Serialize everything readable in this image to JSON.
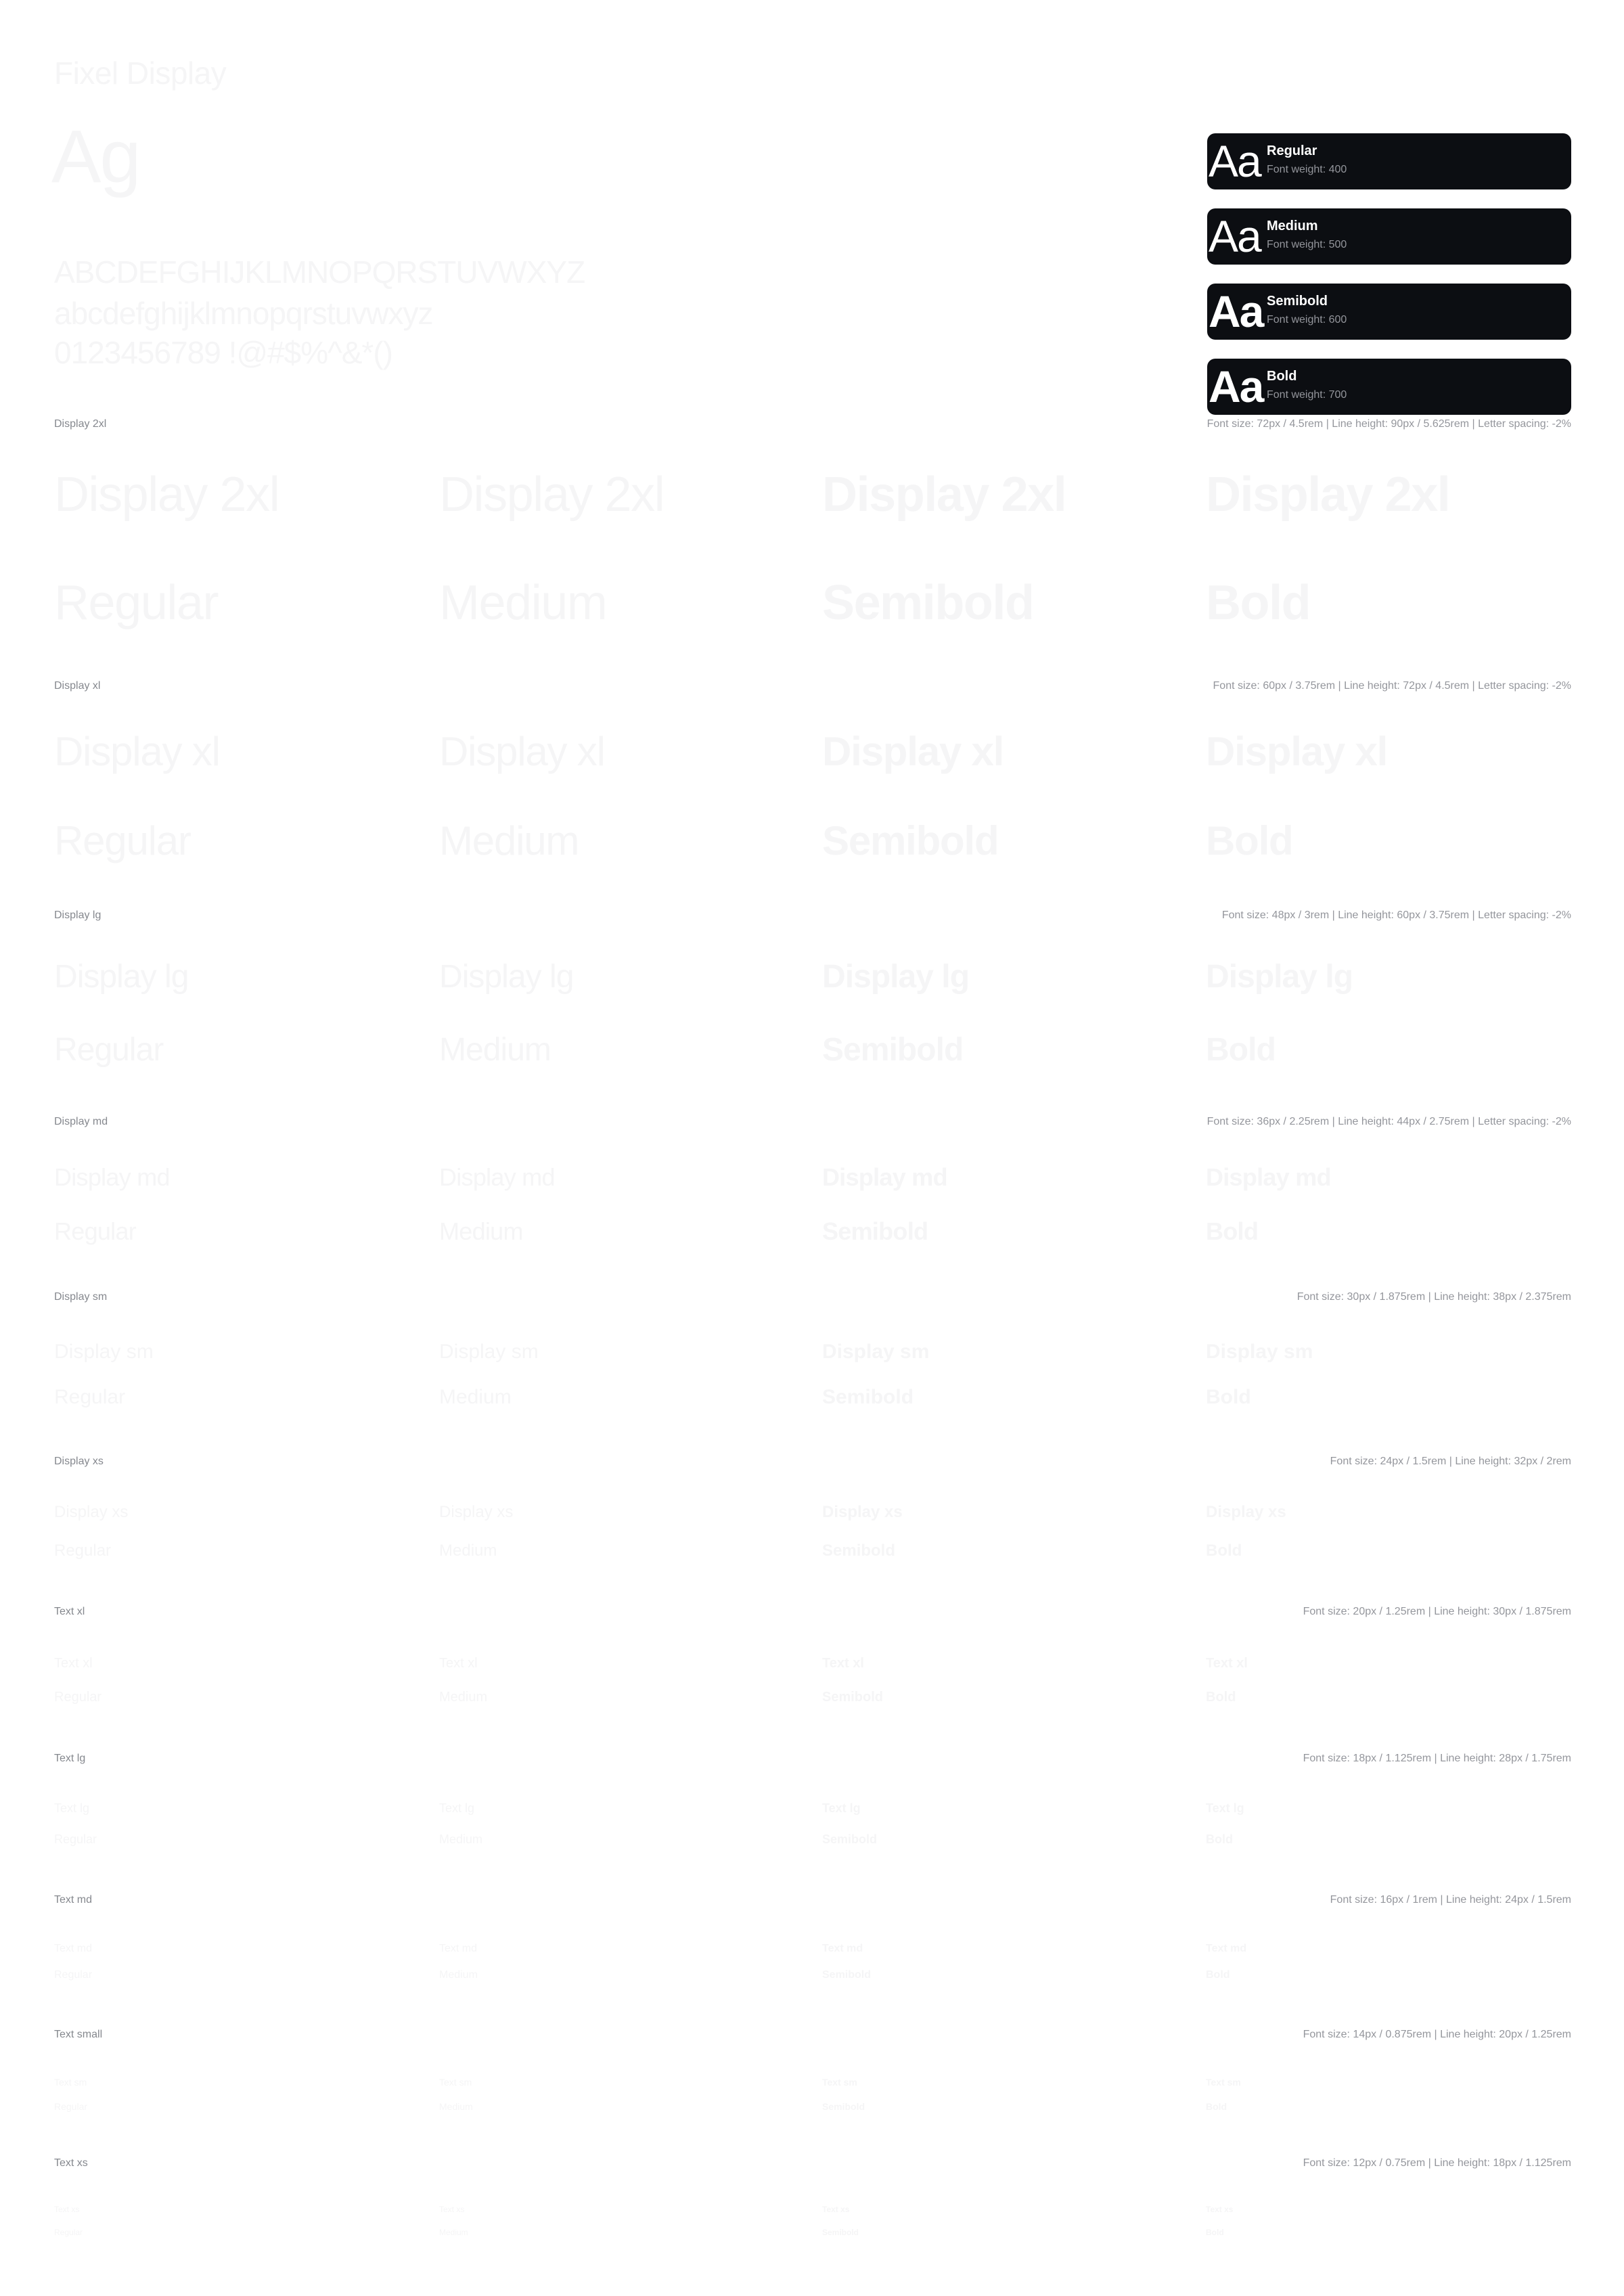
{
  "header": {
    "title": "Fixel Display",
    "specimen": "Ag",
    "uppercase": "ABCDEFGHIJKLMNOPQRSTUVWXYZ",
    "lowercase": "abcdefghijklmnopqrstuvwxyz",
    "numerals": "0123456789 !@#$%^&*()"
  },
  "weights": [
    {
      "sample": "Aa",
      "name": "Regular",
      "detail": "Font weight: 400",
      "weight": 400
    },
    {
      "sample": "Aa",
      "name": "Medium",
      "detail": "Font weight: 500",
      "weight": 500
    },
    {
      "sample": "Aa",
      "name": "Semibold",
      "detail": "Font weight: 600",
      "weight": 600
    },
    {
      "sample": "Aa",
      "name": "Bold",
      "detail": "Font weight: 700",
      "weight": 700
    }
  ],
  "sections": [
    {
      "label": "Display 2xl",
      "meta": "Font size: 72px / 4.5rem | Line height: 90px / 5.625rem | Letter spacing: -2%",
      "sample": "Display 2xl",
      "size": 72,
      "line_height": 90,
      "letter_spacing": -2
    },
    {
      "label": "Display xl",
      "meta": "Font size: 60px / 3.75rem | Line height: 72px / 4.5rem | Letter spacing: -2%",
      "sample": "Display xl",
      "size": 60,
      "line_height": 72,
      "letter_spacing": -2
    },
    {
      "label": "Display lg",
      "meta": "Font size: 48px / 3rem | Line height: 60px / 3.75rem | Letter spacing: -2%",
      "sample": "Display lg",
      "size": 48,
      "line_height": 60,
      "letter_spacing": -2
    },
    {
      "label": "Display md",
      "meta": "Font size: 36px / 2.25rem | Line height: 44px / 2.75rem | Letter spacing: -2%",
      "sample": "Display md",
      "size": 36,
      "line_height": 44,
      "letter_spacing": -2
    },
    {
      "label": "Display sm",
      "meta": "Font size: 30px / 1.875rem | Line height: 38px / 2.375rem",
      "sample": "Display sm",
      "size": 30,
      "line_height": 38,
      "letter_spacing": 0
    },
    {
      "label": "Display xs",
      "meta": "Font size: 24px / 1.5rem | Line height: 32px / 2rem",
      "sample": "Display xs",
      "size": 24,
      "line_height": 32,
      "letter_spacing": 0
    },
    {
      "label": "Text xl",
      "meta": "Font size: 20px / 1.25rem | Line height: 30px / 1.875rem",
      "sample": "Text xl",
      "size": 20,
      "line_height": 30,
      "letter_spacing": 0
    },
    {
      "label": "Text lg",
      "meta": "Font size: 18px / 1.125rem | Line height: 28px / 1.75rem",
      "sample": "Text lg",
      "size": 18,
      "line_height": 28,
      "letter_spacing": 0
    },
    {
      "label": "Text md",
      "meta": "Font size: 16px / 1rem | Line height: 24px / 1.5rem",
      "sample": "Text md",
      "size": 16,
      "line_height": 24,
      "letter_spacing": 0
    },
    {
      "label": "Text small",
      "meta": "Font size: 14px / 0.875rem | Line height: 20px / 1.25rem",
      "sample": "Text sm",
      "size": 14,
      "line_height": 20,
      "letter_spacing": 0
    },
    {
      "label": "Text xs",
      "meta": "Font size: 12px / 0.75rem | Line height: 18px / 1.125rem",
      "sample": "Text xs",
      "size": 12,
      "line_height": 18,
      "letter_spacing": 0
    }
  ],
  "colors": {
    "card_bg": "#0c0e12",
    "specimen_text": "#f5f5f6",
    "label_text": "#85888e",
    "meta_text": "#94969c"
  }
}
